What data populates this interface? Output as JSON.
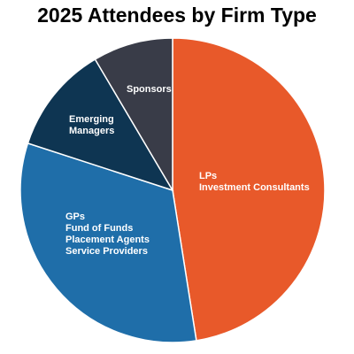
{
  "chart_data": {
    "type": "pie",
    "title": "2025 Attendees by Firm Type",
    "slices": [
      {
        "label": [
          "LPs",
          "Investment Consultants"
        ],
        "value": 47.5,
        "color": "#E8592A"
      },
      {
        "label": [
          "GPs",
          "Fund of Funds",
          "Placement Agents",
          "Service Providers"
        ],
        "value": 32.5,
        "color": "#1F6EA9"
      },
      {
        "label": [
          "Emerging",
          "Managers"
        ],
        "value": 11.5,
        "color": "#0E3552"
      },
      {
        "label": [
          "Sponsors"
        ],
        "value": 8.5,
        "color": "#393C48"
      }
    ],
    "start_angle_deg": 0,
    "direction": "clockwise",
    "legend": "none"
  }
}
